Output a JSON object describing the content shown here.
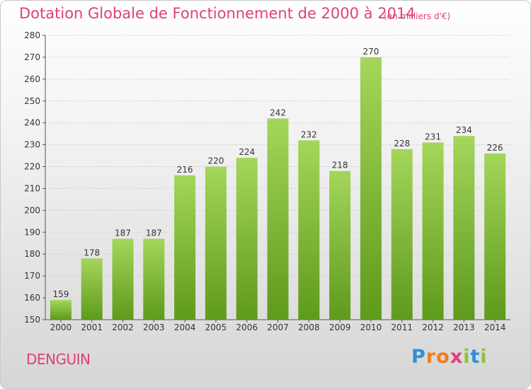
{
  "chart_data": {
    "type": "bar",
    "title": "Dotation Globale de Fonctionnement de 2000 à 2014",
    "unit_note": "(en milliers d'€)",
    "categories": [
      "2000",
      "2001",
      "2002",
      "2003",
      "2004",
      "2005",
      "2006",
      "2007",
      "2008",
      "2009",
      "2010",
      "2011",
      "2012",
      "2013",
      "2014"
    ],
    "values": [
      159,
      178,
      187,
      187,
      216,
      220,
      224,
      242,
      232,
      218,
      270,
      228,
      231,
      234,
      226
    ],
    "ylim": [
      150,
      280
    ],
    "yticks": [
      150,
      160,
      170,
      180,
      190,
      200,
      210,
      220,
      230,
      240,
      250,
      260,
      270,
      280
    ],
    "grid": true,
    "bar_color": "#7ab82e",
    "xlabel": "",
    "ylabel": ""
  },
  "commune": "DENGUIN",
  "logo": {
    "letters": [
      "P",
      "r",
      "o",
      "x",
      "i",
      "t",
      "i"
    ],
    "colors": [
      "#2e8fd8",
      "#f07d1a",
      "#f07d1a",
      "#e0407a",
      "#8ac43a",
      "#2e8fd8",
      "#8ac43a"
    ]
  },
  "text_color": "#e0407a"
}
